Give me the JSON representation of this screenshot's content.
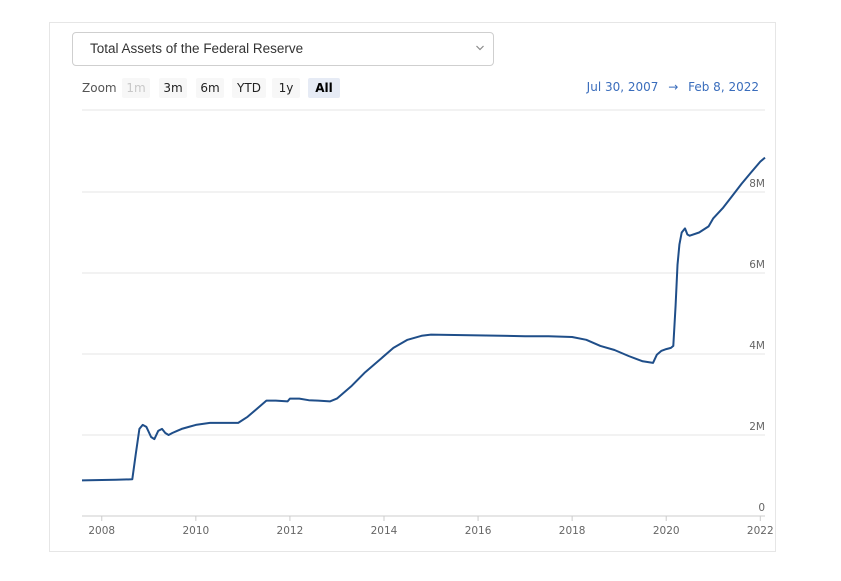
{
  "selector": {
    "value": "Total Assets of the Federal Reserve"
  },
  "zoom": {
    "label": "Zoom",
    "buttons": [
      {
        "label": "1m",
        "state": "disabled"
      },
      {
        "label": "3m",
        "state": "normal"
      },
      {
        "label": "6m",
        "state": "normal"
      },
      {
        "label": "YTD",
        "state": "normal"
      },
      {
        "label": "1y",
        "state": "normal"
      },
      {
        "label": "All",
        "state": "active"
      }
    ]
  },
  "range": {
    "from": "Jul 30, 2007",
    "arrow": "→",
    "to": "Feb 8, 2022"
  },
  "colors": {
    "line": "#1f4e89",
    "grid": "#e6e6e6",
    "range_text": "#3a6dbc",
    "active_zoom_bg": "#e6ebf5"
  },
  "chart_data": {
    "type": "line",
    "title": "Total Assets of the Federal Reserve",
    "xlabel": "",
    "ylabel": "",
    "xlim": [
      2007.58,
      2022.1
    ],
    "ylim": [
      0,
      8000000
    ],
    "y_ticks": [
      0,
      2000000,
      4000000,
      6000000,
      8000000
    ],
    "y_tick_labels": [
      "0",
      "2M",
      "4M",
      "6M",
      "8M"
    ],
    "x_ticks": [
      2008,
      2010,
      2012,
      2014,
      2016,
      2018,
      2020,
      2022
    ],
    "x_tick_labels": [
      "2008",
      "2010",
      "2012",
      "2014",
      "2016",
      "2018",
      "2020",
      "2022"
    ],
    "grid": true,
    "series": [
      {
        "x": [
          2007.58,
          2008.0,
          2008.3,
          2008.65,
          2008.72,
          2008.8,
          2008.87,
          2008.95,
          2009.05,
          2009.12,
          2009.2,
          2009.28,
          2009.35,
          2009.42,
          2009.5,
          2009.6,
          2009.7,
          2009.85,
          2010.0,
          2010.3,
          2010.6,
          2010.9,
          2011.1,
          2011.3,
          2011.5,
          2011.7,
          2011.95,
          2012.0,
          2012.2,
          2012.4,
          2012.6,
          2012.85,
          2013.0,
          2013.3,
          2013.6,
          2013.9,
          2014.2,
          2014.5,
          2014.8,
          2015.0,
          2015.5,
          2016.0,
          2016.5,
          2017.0,
          2017.5,
          2018.0,
          2018.3,
          2018.6,
          2018.9,
          2019.2,
          2019.5,
          2019.72,
          2019.8,
          2019.9,
          2020.0,
          2020.1,
          2020.15,
          2020.2,
          2020.24,
          2020.28,
          2020.33,
          2020.4,
          2020.45,
          2020.5,
          2020.7,
          2020.9,
          2021.0,
          2021.2,
          2021.4,
          2021.6,
          2021.8,
          2022.0,
          2022.1
        ],
        "y": [
          880000,
          890000,
          895000,
          905000,
          1500000,
          2150000,
          2250000,
          2200000,
          1950000,
          1900000,
          2100000,
          2150000,
          2050000,
          2000000,
          2050000,
          2100000,
          2150000,
          2200000,
          2250000,
          2300000,
          2300000,
          2300000,
          2450000,
          2650000,
          2850000,
          2850000,
          2830000,
          2900000,
          2900000,
          2860000,
          2850000,
          2830000,
          2900000,
          3200000,
          3550000,
          3850000,
          4150000,
          4350000,
          4450000,
          4480000,
          4470000,
          4460000,
          4450000,
          4440000,
          4440000,
          4420000,
          4350000,
          4200000,
          4100000,
          3950000,
          3820000,
          3780000,
          3980000,
          4080000,
          4120000,
          4150000,
          4200000,
          5200000,
          6200000,
          6700000,
          7000000,
          7100000,
          6950000,
          6920000,
          7000000,
          7150000,
          7350000,
          7600000,
          7900000,
          8200000,
          8480000,
          8750000,
          8850000
        ]
      }
    ]
  }
}
